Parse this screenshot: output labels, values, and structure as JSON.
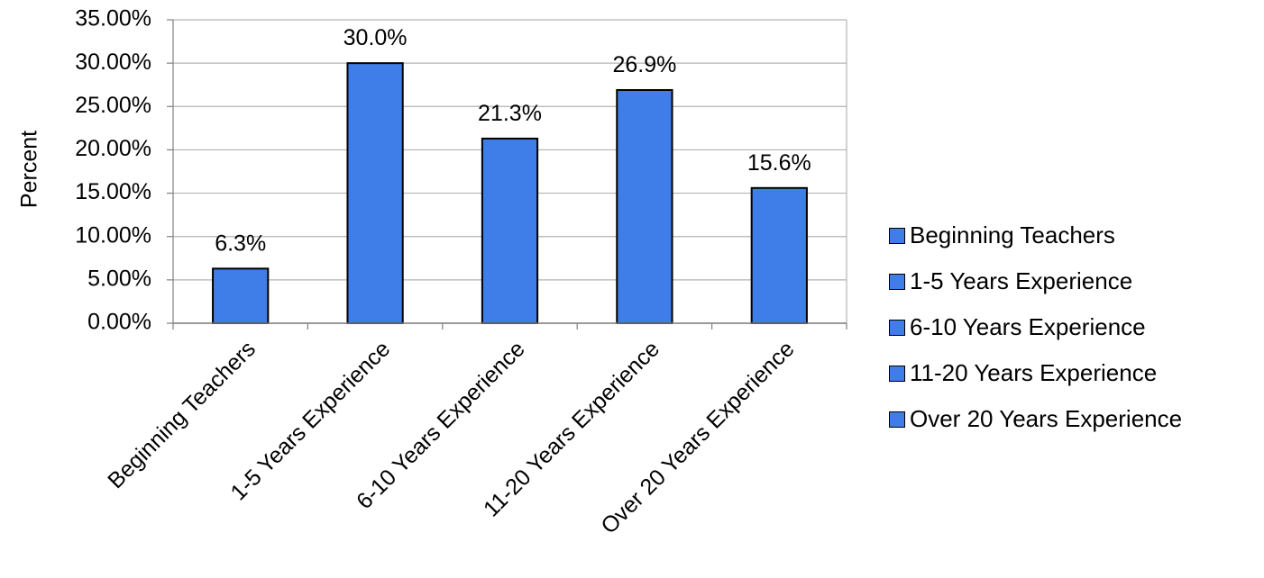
{
  "chart_data": {
    "type": "bar",
    "title": "",
    "xlabel": "",
    "ylabel": "Percent",
    "ylim": [
      0,
      35
    ],
    "yticks": [
      "0.00%",
      "5.00%",
      "10.00%",
      "15.00%",
      "20.00%",
      "25.00%",
      "30.00%",
      "35.00%"
    ],
    "categories": [
      "Beginning Teachers",
      "1-5 Years Experience",
      "6-10 Years Experience",
      "11-20 Years Experience",
      "Over 20 Years Experience"
    ],
    "values": [
      6.3,
      30.0,
      21.3,
      26.9,
      15.6
    ],
    "data_labels": [
      "6.3%",
      "30.0%",
      "21.3%",
      "26.9%",
      "15.6%"
    ],
    "bar_color": "#3f7ee8",
    "grid": true,
    "legend": {
      "position": "right",
      "entries": [
        "Beginning Teachers",
        "1-5 Years Experience",
        "6-10 Years Experience",
        "11-20 Years Experience",
        "Over 20 Years Experience"
      ]
    }
  }
}
